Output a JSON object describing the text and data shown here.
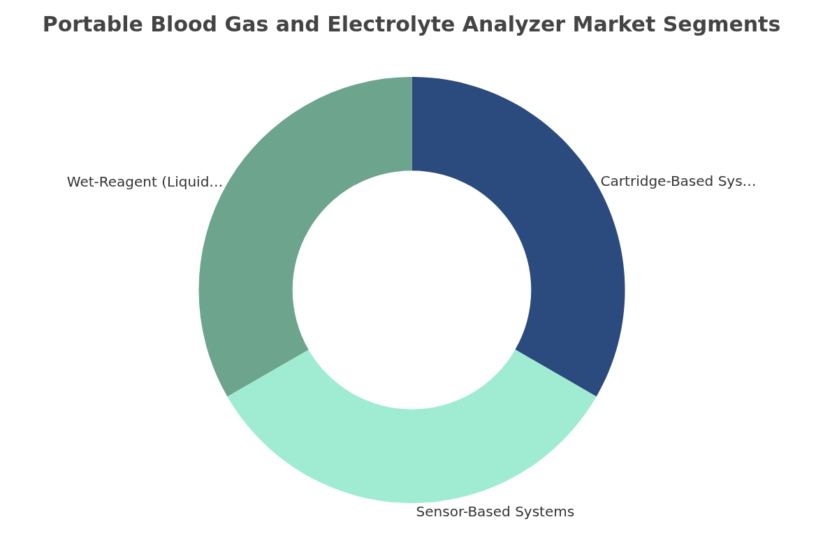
{
  "chart_data": {
    "type": "donut",
    "title": "Portable Blood Gas and Electrolyte Analyzer Market Segments",
    "categories": [
      "Cartridge-Based Sys…",
      "Sensor-Based Systems",
      "Wet-Reagent (Liquid…"
    ],
    "values": [
      33.33,
      33.33,
      33.34
    ],
    "colors": [
      "#2b4a7e",
      "#a0ecd3",
      "#6ca48e"
    ],
    "legend": false
  }
}
